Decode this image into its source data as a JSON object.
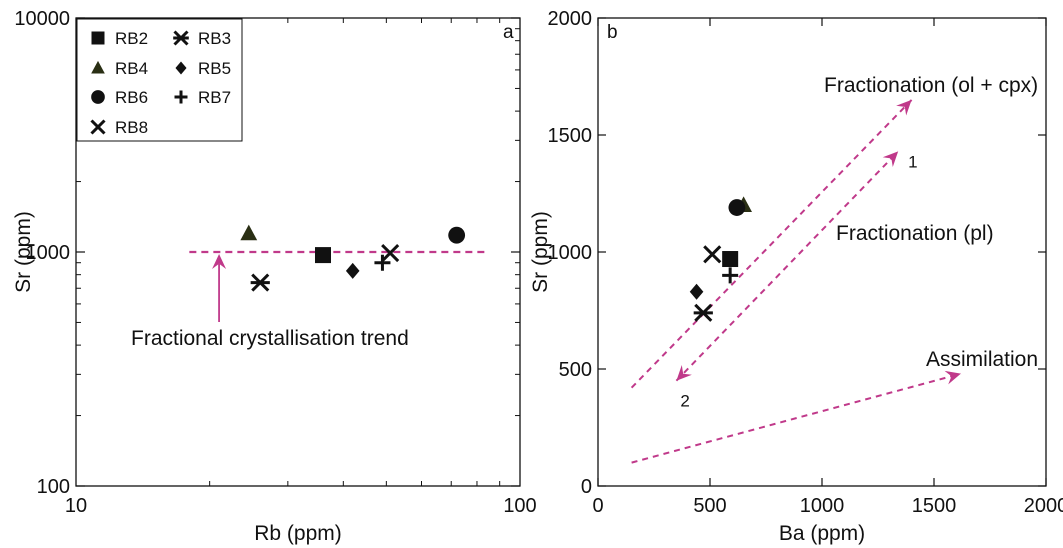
{
  "chart_data": [
    {
      "type": "scatter",
      "panel_label": "a",
      "xlabel": "Rb (ppm)",
      "ylabel": "Sr (ppm)",
      "xscale": "log",
      "yscale": "log",
      "xlim": [
        10,
        100
      ],
      "ylim": [
        100,
        10000
      ],
      "xticks": [
        10,
        100
      ],
      "xtick_labels": [
        "10",
        "100"
      ],
      "yticks": [
        100,
        1000,
        10000
      ],
      "ytick_labels": [
        "100",
        "1000",
        "10000"
      ],
      "grid": false,
      "legend_position": "top-left",
      "series": [
        {
          "name": "RB2",
          "marker": "square",
          "points": [
            {
              "x": 36,
              "y": 970
            }
          ]
        },
        {
          "name": "RB3",
          "marker": "asterisk",
          "points": [
            {
              "x": 26,
              "y": 740
            }
          ]
        },
        {
          "name": "RB4",
          "marker": "triangle",
          "points": [
            {
              "x": 24.5,
              "y": 1200
            }
          ]
        },
        {
          "name": "RB5",
          "marker": "diamond",
          "points": [
            {
              "x": 42,
              "y": 830
            }
          ]
        },
        {
          "name": "RB6",
          "marker": "circle",
          "points": [
            {
              "x": 72,
              "y": 1180
            }
          ]
        },
        {
          "name": "RB7",
          "marker": "plus",
          "points": [
            {
              "x": 49,
              "y": 900
            }
          ]
        },
        {
          "name": "RB8",
          "marker": "x",
          "points": [
            {
              "x": 51,
              "y": 990
            }
          ]
        }
      ],
      "reference_line": {
        "y": 1000,
        "x_from": 18,
        "x_to": 85
      },
      "annotations": [
        {
          "text": "Fractional crystallisation trend",
          "arrow_to": {
            "x": 21,
            "y": 1000
          }
        }
      ]
    },
    {
      "type": "scatter",
      "panel_label": "b",
      "xlabel": "Ba (ppm)",
      "ylabel": "Sr (ppm)",
      "xlim": [
        0,
        2000
      ],
      "ylim": [
        0,
        2000
      ],
      "xticks": [
        0,
        500,
        1000,
        1500,
        2000
      ],
      "xtick_labels": [
        "0",
        "500",
        "1000",
        "1500",
        "2000"
      ],
      "yticks": [
        0,
        500,
        1000,
        1500,
        2000
      ],
      "ytick_labels": [
        "0",
        "500",
        "1000",
        "1500",
        "2000"
      ],
      "grid": false,
      "series": [
        {
          "name": "RB2",
          "marker": "square",
          "points": [
            {
              "x": 590,
              "y": 970
            }
          ]
        },
        {
          "name": "RB3",
          "marker": "asterisk",
          "points": [
            {
              "x": 470,
              "y": 740
            }
          ]
        },
        {
          "name": "RB4",
          "marker": "triangle",
          "points": [
            {
              "x": 650,
              "y": 1200
            }
          ]
        },
        {
          "name": "RB5",
          "marker": "diamond",
          "points": [
            {
              "x": 440,
              "y": 830
            }
          ]
        },
        {
          "name": "RB6",
          "marker": "circle",
          "points": [
            {
              "x": 620,
              "y": 1190
            }
          ]
        },
        {
          "name": "RB7",
          "marker": "plus",
          "points": [
            {
              "x": 590,
              "y": 900
            }
          ]
        },
        {
          "name": "RB8",
          "marker": "x",
          "points": [
            {
              "x": 510,
              "y": 990
            }
          ]
        }
      ],
      "vectors": [
        {
          "label": "Fractionation (ol + cpx)",
          "from": {
            "x": 150,
            "y": 420
          },
          "to": {
            "x": 1400,
            "y": 1650
          },
          "heads": "end"
        },
        {
          "label": "Fractionation (pl)",
          "from": {
            "x": 350,
            "y": 450
          },
          "to": {
            "x": 1340,
            "y": 1430
          },
          "heads": "both",
          "end_labels": [
            "1",
            "2"
          ]
        },
        {
          "label": "Assimilation",
          "from": {
            "x": 150,
            "y": 100
          },
          "to": {
            "x": 1620,
            "y": 480
          },
          "heads": "end"
        }
      ]
    }
  ],
  "colors": {
    "trend": "#c0398a",
    "marker": "#111111",
    "marker_triangle": "#2a2f14"
  },
  "legend": {
    "entries": [
      {
        "name": "RB2",
        "marker": "square"
      },
      {
        "name": "RB3",
        "marker": "asterisk"
      },
      {
        "name": "RB4",
        "marker": "triangle"
      },
      {
        "name": "RB5",
        "marker": "diamond"
      },
      {
        "name": "RB6",
        "marker": "circle"
      },
      {
        "name": "RB7",
        "marker": "plus"
      },
      {
        "name": "RB8",
        "marker": "x"
      }
    ]
  }
}
